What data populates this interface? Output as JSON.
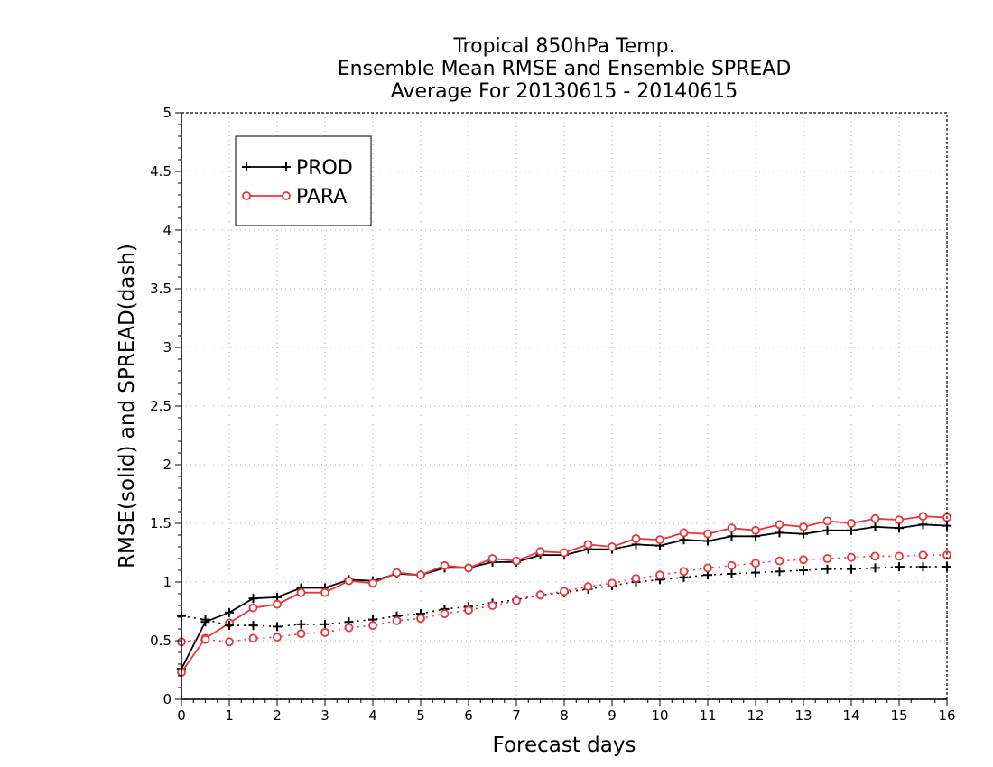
{
  "chart_data": {
    "type": "line",
    "title": [
      "Tropical 850hPa Temp.",
      "Ensemble Mean RMSE and Ensemble SPREAD",
      "Average For 20130615 - 20140615"
    ],
    "xlabel": "Forecast days",
    "ylabel": "RMSE(solid) and SPREAD(dash)",
    "xlim": [
      0,
      16
    ],
    "ylim": [
      0,
      5
    ],
    "x_ticks": [
      "0",
      "1",
      "2",
      "3",
      "4",
      "5",
      "6",
      "7",
      "8",
      "9",
      "10",
      "11",
      "12",
      "13",
      "14",
      "15",
      "16"
    ],
    "y_ticks": [
      "0",
      "0.5",
      "1",
      "1.5",
      "2",
      "2.5",
      "3",
      "3.5",
      "4",
      "4.5",
      "5"
    ],
    "grid": true,
    "legend_position": "top-left",
    "legend": [
      {
        "name": "PROD",
        "color": "#000000",
        "marker": "plus"
      },
      {
        "name": "PARA",
        "color": "#e8353b",
        "marker": "circle"
      }
    ],
    "x": [
      0,
      0.5,
      1,
      1.5,
      2,
      2.5,
      3,
      3.5,
      4,
      4.5,
      5,
      5.5,
      6,
      6.5,
      7,
      7.5,
      8,
      8.5,
      9,
      9.5,
      10,
      10.5,
      11,
      11.5,
      12,
      12.5,
      13,
      13.5,
      14,
      14.5,
      15,
      15.5,
      16
    ],
    "series": [
      {
        "name": "PROD",
        "metric": "RMSE",
        "style": "solid",
        "color": "#000000",
        "marker": "plus",
        "values": [
          0.26,
          0.66,
          0.74,
          0.86,
          0.87,
          0.95,
          0.95,
          1.02,
          1.01,
          1.07,
          1.06,
          1.12,
          1.12,
          1.17,
          1.17,
          1.23,
          1.23,
          1.28,
          1.28,
          1.32,
          1.31,
          1.36,
          1.35,
          1.39,
          1.39,
          1.42,
          1.41,
          1.44,
          1.44,
          1.47,
          1.46,
          1.49,
          1.48
        ]
      },
      {
        "name": "PARA",
        "metric": "RMSE",
        "style": "solid",
        "color": "#e8353b",
        "marker": "circle",
        "values": [
          0.23,
          0.52,
          0.65,
          0.78,
          0.81,
          0.91,
          0.91,
          1.01,
          0.99,
          1.08,
          1.06,
          1.14,
          1.12,
          1.2,
          1.18,
          1.26,
          1.25,
          1.32,
          1.3,
          1.37,
          1.36,
          1.42,
          1.41,
          1.46,
          1.44,
          1.49,
          1.47,
          1.52,
          1.5,
          1.54,
          1.53,
          1.56,
          1.55
        ]
      },
      {
        "name": "PROD",
        "metric": "SPREAD",
        "style": "dashed",
        "color": "#000000",
        "marker": "plus",
        "values": [
          0.71,
          0.68,
          0.63,
          0.63,
          0.62,
          0.64,
          0.64,
          0.66,
          0.68,
          0.71,
          0.73,
          0.77,
          0.79,
          0.82,
          0.85,
          0.89,
          0.91,
          0.94,
          0.97,
          1.0,
          1.02,
          1.04,
          1.06,
          1.07,
          1.08,
          1.09,
          1.1,
          1.11,
          1.11,
          1.12,
          1.13,
          1.13,
          1.13
        ]
      },
      {
        "name": "PARA",
        "metric": "SPREAD",
        "style": "dashed",
        "color": "#e8353b",
        "marker": "circle",
        "values": [
          0.49,
          0.51,
          0.49,
          0.52,
          0.53,
          0.56,
          0.57,
          0.61,
          0.63,
          0.67,
          0.69,
          0.73,
          0.76,
          0.8,
          0.84,
          0.89,
          0.92,
          0.96,
          0.99,
          1.03,
          1.06,
          1.09,
          1.12,
          1.14,
          1.16,
          1.18,
          1.19,
          1.2,
          1.21,
          1.22,
          1.22,
          1.23,
          1.23
        ]
      }
    ]
  }
}
